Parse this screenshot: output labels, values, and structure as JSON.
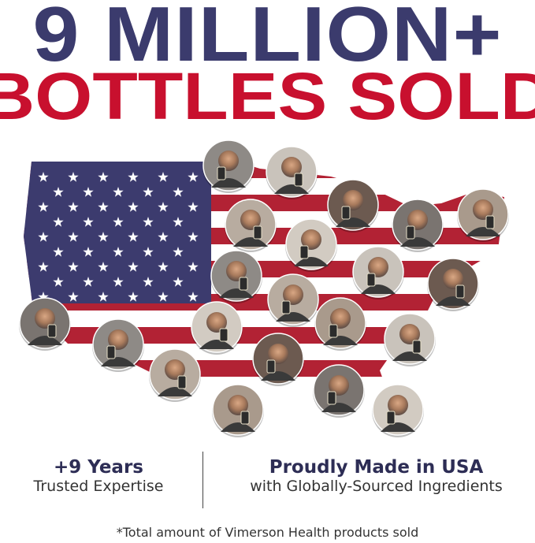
{
  "headline": {
    "line1": "9 MILLION+",
    "line2": "BOTTLES SOLD"
  },
  "colors": {
    "navy": "#3b3b6d",
    "red": "#c8102e",
    "flag_blue": "#3c3b6e",
    "flag_red": "#b22234"
  },
  "map": {
    "description_icon": "usa-flag-map",
    "customer_photos": 21
  },
  "stats": [
    {
      "title": "+9 Years",
      "subtitle": "Trusted Expertise"
    },
    {
      "title": "Proudly Made in USA",
      "subtitle": "with Globally-Sourced Ingredients"
    }
  ],
  "footnote": "*Total amount of Vimerson Health products sold"
}
